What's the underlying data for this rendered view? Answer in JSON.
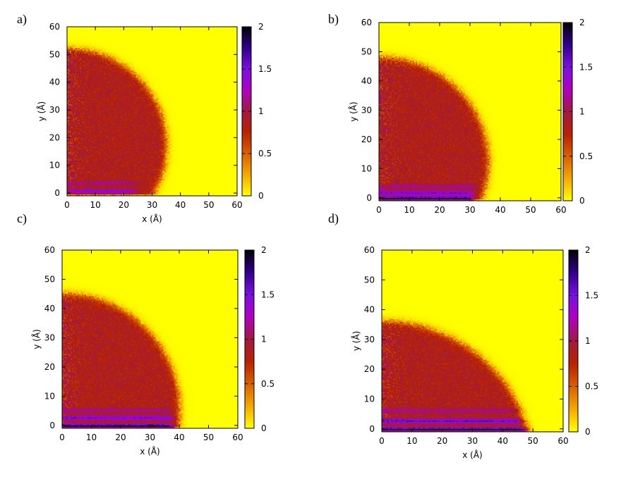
{
  "colors": {
    "background": "#ffffff",
    "colormap": [
      "#ffff00",
      "#f5a800",
      "#d86000",
      "#b82200",
      "#a01a40",
      "#b000c0",
      "#7a10e0",
      "#30008c",
      "#000000"
    ]
  },
  "chart_data": [
    {
      "type": "heatmap",
      "panel_label": "a)",
      "xlabel": "x (Å)",
      "ylabel": "y (Å)",
      "xlim": [
        0,
        60
      ],
      "ylim": [
        -1,
        60
      ],
      "x_ticks": [
        0,
        10,
        20,
        30,
        40,
        50,
        60
      ],
      "y_ticks": [
        0,
        10,
        20,
        30,
        40,
        50,
        60
      ],
      "colorbar": {
        "range": [
          0,
          2
        ],
        "ticks": [
          0,
          0.5,
          1,
          1.5,
          2
        ]
      },
      "background_value": 0,
      "droplet": {
        "value": 0.85,
        "radius": 35,
        "center_y": 17,
        "interface_width": 1.5
      },
      "layers": [
        {
          "y": 0.6,
          "value": 1.4,
          "x_extent": 24
        },
        {
          "y": 3.5,
          "value": 1.15,
          "x_extent": 25
        }
      ]
    },
    {
      "type": "heatmap",
      "panel_label": "b)",
      "xlabel": "",
      "ylabel": "y (Å)",
      "xlim": [
        0,
        60
      ],
      "ylim": [
        -1,
        60
      ],
      "x_ticks": [
        0,
        10,
        20,
        30,
        40,
        50,
        60
      ],
      "y_ticks": [
        0,
        10,
        20,
        30,
        40,
        50,
        60
      ],
      "colorbar": {
        "range": [
          0,
          2
        ],
        "ticks": [
          0,
          0.5,
          1,
          1.5,
          2
        ]
      },
      "background_value": 0,
      "droplet": {
        "value": 0.85,
        "radius": 36,
        "center_y": 12,
        "interface_width": 1.5
      },
      "layers": [
        {
          "y": -0.3,
          "value": 1.9,
          "x_extent": 31
        },
        {
          "y": 1.6,
          "value": 1.5,
          "x_extent": 31
        },
        {
          "y": 3.8,
          "value": 1.15,
          "x_extent": 32
        }
      ]
    },
    {
      "type": "heatmap",
      "panel_label": "c)",
      "xlabel": "x (Å)",
      "ylabel": "y (Å)",
      "xlim": [
        0,
        60
      ],
      "ylim": [
        -1,
        60
      ],
      "x_ticks": [
        0,
        10,
        20,
        30,
        40,
        50,
        60
      ],
      "y_ticks": [
        0,
        10,
        20,
        30,
        40,
        50,
        60
      ],
      "colorbar": {
        "range": [
          0,
          2
        ],
        "ticks": [
          0,
          0.5,
          1,
          1.5,
          2
        ]
      },
      "background_value": 0,
      "droplet": {
        "value": 0.85,
        "radius": 40,
        "center_y": 5,
        "interface_width": 1.5
      },
      "layers": [
        {
          "y": -0.3,
          "value": 1.9,
          "x_extent": 38
        },
        {
          "y": 2.5,
          "value": 1.5,
          "x_extent": 38
        },
        {
          "y": 5.0,
          "value": 1.15,
          "x_extent": 37
        }
      ]
    },
    {
      "type": "heatmap",
      "panel_label": "d)",
      "xlabel": "x (Å)",
      "ylabel": "y (Å)",
      "xlim": [
        0,
        60
      ],
      "ylim": [
        -1,
        60
      ],
      "x_ticks": [
        0,
        10,
        20,
        30,
        40,
        50,
        60
      ],
      "y_ticks": [
        0,
        10,
        20,
        30,
        40,
        50,
        60
      ],
      "colorbar": {
        "range": [
          0,
          2
        ],
        "ticks": [
          0,
          0.5,
          1,
          1.5,
          2
        ]
      },
      "background_value": 0,
      "droplet": {
        "value": 0.85,
        "radius": 50,
        "center_y": -14,
        "interface_width": 1.5
      },
      "layers": [
        {
          "y": -0.3,
          "value": 1.9,
          "x_extent": 48
        },
        {
          "y": 2.6,
          "value": 1.6,
          "x_extent": 46
        },
        {
          "y": 6.0,
          "value": 1.15,
          "x_extent": 45
        }
      ]
    }
  ]
}
